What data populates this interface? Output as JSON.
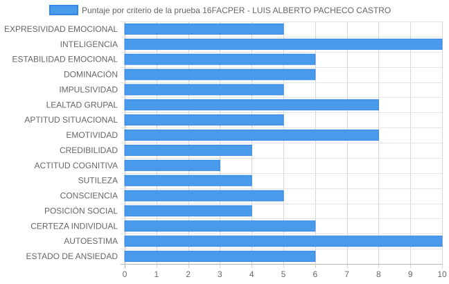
{
  "chart_data": {
    "type": "bar",
    "orientation": "horizontal",
    "title": "",
    "xlabel": "",
    "ylabel": "",
    "xlim": [
      0,
      10
    ],
    "x_ticks": [
      0,
      1,
      2,
      3,
      4,
      5,
      6,
      7,
      8,
      9,
      10
    ],
    "grid": true,
    "legend": "top",
    "categories": [
      "EXPRESIVIDAD EMOCIONAL",
      "INTELIGENCIA",
      "ESTABILIDAD EMOCIONAL",
      "DOMINACIÓN",
      "IMPULSIVIDAD",
      "LEALTAD GRUPAL",
      "APTITUD SITUACIONAL",
      "EMOTIVIDAD",
      "CREDIBILIDAD",
      "ACTITUD COGNITIVA",
      "SUTILEZA",
      "CONSCIENCIA",
      "POSICIÓN SOCIAL",
      "CERTEZA INDIVIDUAL",
      "AUTOESTIMA",
      "ESTADO DE ANSIEDAD"
    ],
    "series": [
      {
        "name": "Puntaje por criterio de la prueba 16FACPER - LUIS ALBERTO PACHECO CASTRO",
        "values": [
          5,
          10,
          6,
          6,
          5,
          8,
          5,
          8,
          4,
          3,
          4,
          5,
          4,
          6,
          10,
          6
        ],
        "color": "#4a9aec",
        "border_color": "#2f86e6"
      }
    ]
  }
}
